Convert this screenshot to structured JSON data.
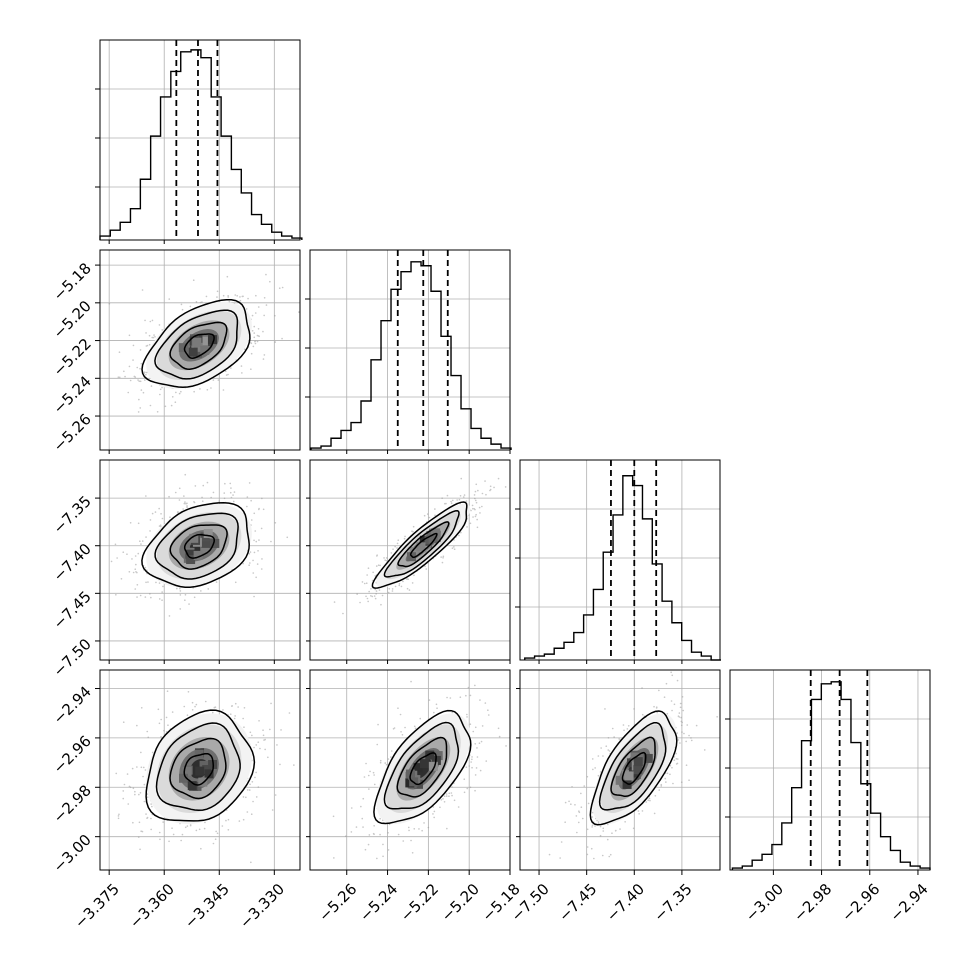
{
  "chart_data": {
    "type": "corner",
    "parameters": 4,
    "histogram_fill": "#ffffff",
    "line_color": "#000000",
    "grid_color": "#b0b0b0",
    "scatter_color": "#9a9a9a",
    "diag": [
      {
        "range": [
          -3.3775,
          -3.323
        ],
        "bins": [
          -3.3775,
          -3.3747,
          -3.372,
          -3.3692,
          -3.3665,
          -3.3637,
          -3.361,
          -3.3582,
          -3.3555,
          -3.3527,
          -3.35,
          -3.3472,
          -3.3445,
          -3.3417,
          -3.339,
          -3.3362,
          -3.3335,
          -3.3307,
          -3.328,
          -3.3252,
          -3.3225
        ],
        "counts": [
          0.2,
          0.5,
          0.9,
          1.6,
          3.1,
          5.3,
          7.3,
          8.6,
          9.6,
          9.7,
          9.3,
          7.3,
          5.3,
          3.6,
          2.4,
          1.3,
          0.8,
          0.4,
          0.2,
          0.1
        ],
        "ylim": [
          0,
          10
        ],
        "quantiles": [
          -3.3567,
          -3.3508,
          -3.3455
        ]
      },
      {
        "range": [
          -5.278,
          -5.18
        ],
        "bins": [
          -5.2775,
          -5.2726,
          -5.2677,
          -5.2628,
          -5.2579,
          -5.253,
          -5.2481,
          -5.2432,
          -5.2383,
          -5.2334,
          -5.2285,
          -5.2236,
          -5.2187,
          -5.2138,
          -5.2089,
          -5.204,
          -5.1991,
          -5.1942,
          -5.1893,
          -5.1844,
          -5.1795
        ],
        "counts": [
          0.1,
          0.2,
          0.6,
          1.0,
          1.4,
          2.5,
          4.6,
          6.6,
          8.2,
          9.1,
          9.6,
          9.4,
          8.1,
          5.8,
          3.8,
          2.1,
          1.1,
          0.6,
          0.3,
          0.1
        ],
        "ylim": [
          0,
          10
        ],
        "quantiles": [
          -5.235,
          -5.2225,
          -5.2105
        ]
      },
      {
        "range": [
          -7.52,
          -7.31
        ],
        "bins": [
          -7.515,
          -7.5047,
          -7.4944,
          -7.4841,
          -7.4738,
          -7.4635,
          -7.4532,
          -7.4429,
          -7.4326,
          -7.4223,
          -7.412,
          -7.4017,
          -7.3914,
          -7.3811,
          -7.3708,
          -7.3605,
          -7.3502,
          -7.3399,
          -7.3296,
          -7.3193,
          -7.309
        ],
        "counts": [
          0.1,
          0.2,
          0.3,
          0.6,
          0.9,
          1.4,
          2.3,
          3.6,
          5.5,
          7.4,
          9.4,
          8.9,
          7.2,
          4.9,
          3.0,
          1.9,
          1.0,
          0.4,
          0.2,
          0.0
        ],
        "ylim": [
          0,
          10
        ],
        "quantiles": [
          -7.4245,
          -7.4,
          -7.377
        ]
      },
      {
        "range": [
          -3.018,
          -2.935
        ],
        "bins": [
          -3.017,
          -3.0129,
          -3.0088,
          -3.0047,
          -3.0006,
          -2.9965,
          -2.9924,
          -2.9883,
          -2.9842,
          -2.9801,
          -2.976,
          -2.9719,
          -2.9678,
          -2.9637,
          -2.9596,
          -2.9555,
          -2.9514,
          -2.9473,
          -2.9432,
          -2.9391,
          -2.935
        ],
        "counts": [
          0.1,
          0.2,
          0.5,
          0.8,
          1.3,
          2.4,
          4.2,
          6.6,
          8.7,
          9.5,
          9.6,
          8.7,
          6.5,
          4.4,
          2.9,
          1.7,
          1.0,
          0.4,
          0.2,
          0.1
        ],
        "ylim": [
          0,
          10
        ],
        "quantiles": [
          -2.9845,
          -2.9725,
          -2.961
        ]
      }
    ],
    "axes": {
      "x": [
        {
          "range": [
            -3.3775,
            -3.323
          ],
          "ticks": [
            -3.375,
            -3.36,
            -3.345,
            -3.33
          ],
          "tick_labels": [
            "−3.375",
            "−3.360",
            "−3.345",
            "−3.330"
          ]
        },
        {
          "range": [
            -5.278,
            -5.18
          ],
          "ticks": [
            -5.26,
            -5.24,
            -5.22,
            -5.2,
            -5.18
          ],
          "tick_labels": [
            "−5.26",
            "−5.24",
            "−5.22",
            "−5.20",
            "−5.18"
          ]
        },
        {
          "range": [
            -7.52,
            -7.31
          ],
          "ticks": [
            -7.5,
            -7.45,
            -7.4,
            -7.35
          ],
          "tick_labels": [
            "−7.50",
            "−7.45",
            "−7.40",
            "−7.35"
          ]
        },
        {
          "range": [
            -3.018,
            -2.935
          ],
          "ticks": [
            -3.0,
            -2.98,
            -2.96,
            -2.94
          ],
          "tick_labels": [
            "−3.00",
            "−2.98",
            "−2.96",
            "−2.94"
          ]
        }
      ],
      "y": [
        null,
        {
          "range": [
            -5.278,
            -5.172
          ],
          "ticks": [
            -5.26,
            -5.24,
            -5.22,
            -5.2,
            -5.18
          ],
          "tick_labels": [
            "−5.26",
            "−5.24",
            "−5.22",
            "−5.20",
            "−5.18"
          ]
        },
        {
          "range": [
            -7.52,
            -7.31
          ],
          "ticks": [
            -7.5,
            -7.45,
            -7.4,
            -7.35
          ],
          "tick_labels": [
            "−7.50",
            "−7.45",
            "−7.40",
            "−7.35"
          ]
        },
        {
          "range": [
            -3.0135,
            -2.9325
          ],
          "ticks": [
            -3.0,
            -2.98,
            -2.96,
            -2.94
          ],
          "tick_labels": [
            "−3.00",
            "−2.98",
            "−2.96",
            "−2.94"
          ]
        }
      ]
    },
    "pairs": [
      {
        "row": 1,
        "col": 0,
        "mean": [
          -3.3505,
          -5.2225
        ],
        "sd": [
          0.0072,
          0.0115
        ],
        "corr": 0.45
      },
      {
        "row": 2,
        "col": 0,
        "mean": [
          -3.3505,
          -7.4
        ],
        "sd": [
          0.0072,
          0.022
        ],
        "corr": 0.3
      },
      {
        "row": 2,
        "col": 1,
        "mean": [
          -5.2225,
          -7.4
        ],
        "sd": [
          0.0115,
          0.022
        ],
        "corr": 0.88
      },
      {
        "row": 3,
        "col": 0,
        "mean": [
          -3.3505,
          -2.9725
        ],
        "sd": [
          0.0072,
          0.0112
        ],
        "corr": 0.22
      },
      {
        "row": 3,
        "col": 1,
        "mean": [
          -5.2225,
          -2.9725
        ],
        "sd": [
          0.0115,
          0.0112
        ],
        "corr": 0.6
      },
      {
        "row": 3,
        "col": 2,
        "mean": [
          -7.4,
          -2.9725
        ],
        "sd": [
          0.022,
          0.0112
        ],
        "corr": 0.65
      }
    ]
  }
}
